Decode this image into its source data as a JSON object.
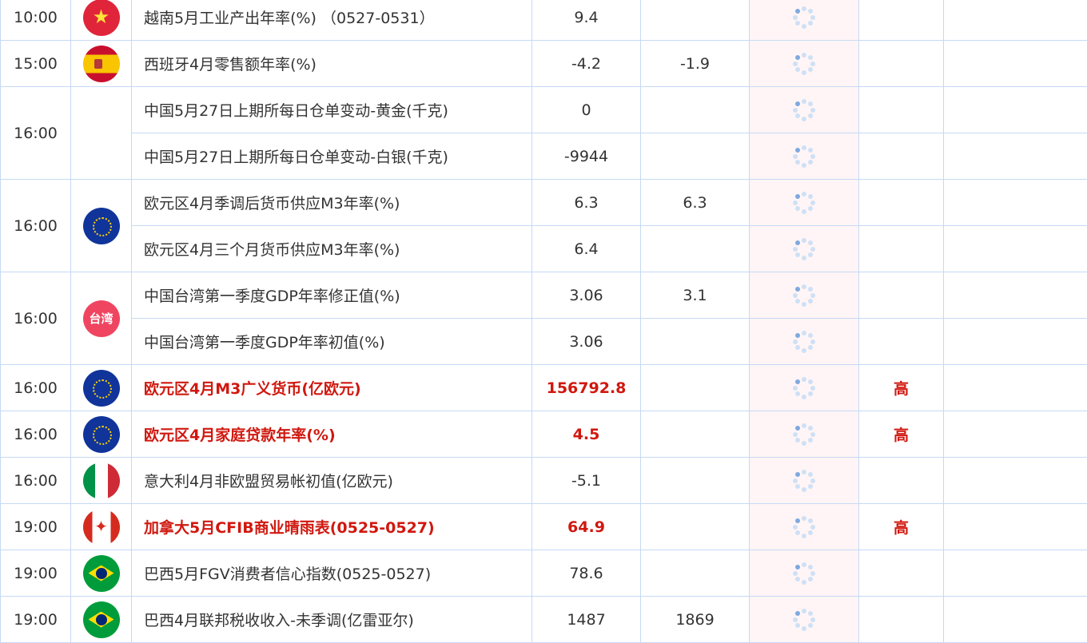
{
  "rows": [
    {
      "time": "10:00",
      "flag": "vietnam",
      "event": "越南5月工业产出年率(%)  （0527-0531）",
      "prev": "9.4",
      "forecast": "",
      "importance": ""
    },
    {
      "time": "15:00",
      "flag": "spain",
      "event": "西班牙4月零售额年率(%)",
      "prev": "-4.2",
      "forecast": "-1.9",
      "importance": ""
    },
    {
      "time": "16:00",
      "flag": "",
      "span": 2,
      "event": "中国5月27日上期所每日仓单变动-黄金(千克)",
      "prev": "0",
      "forecast": "",
      "importance": ""
    },
    {
      "event": "中国5月27日上期所每日仓单变动-白银(千克)",
      "prev": "-9944",
      "forecast": "",
      "importance": ""
    },
    {
      "time": "16:00",
      "flag": "eu",
      "span": 2,
      "event": "欧元区4月季调后货币供应M3年率(%)",
      "prev": "6.3",
      "forecast": "6.3",
      "importance": ""
    },
    {
      "event": "欧元区4月三个月货币供应M3年率(%)",
      "prev": "6.4",
      "forecast": "",
      "importance": ""
    },
    {
      "time": "16:00",
      "flag": "taiwan",
      "flag_text": "台湾",
      "span": 2,
      "event": "中国台湾第一季度GDP年率修正值(%)",
      "prev": "3.06",
      "forecast": "3.1",
      "importance": ""
    },
    {
      "event": "中国台湾第一季度GDP年率初值(%)",
      "prev": "3.06",
      "forecast": "",
      "importance": ""
    },
    {
      "time": "16:00",
      "flag": "eu",
      "event": "欧元区4月M3广义货币(亿欧元)",
      "prev": "156792.8",
      "forecast": "",
      "importance": "高",
      "high": true
    },
    {
      "time": "16:00",
      "flag": "eu",
      "event": "欧元区4月家庭贷款年率(%)",
      "prev": "4.5",
      "forecast": "",
      "importance": "高",
      "high": true
    },
    {
      "time": "16:00",
      "flag": "italy",
      "event": "意大利4月非欧盟贸易帐初值(亿欧元)",
      "prev": "-5.1",
      "forecast": "",
      "importance": ""
    },
    {
      "time": "19:00",
      "flag": "canada",
      "event": "加拿大5月CFIB商业晴雨表(0525-0527)",
      "prev": "64.9",
      "forecast": "",
      "importance": "高",
      "high": true
    },
    {
      "time": "19:00",
      "flag": "brazil",
      "event": "巴西5月FGV消费者信心指数(0525-0527)",
      "prev": "78.6",
      "forecast": "",
      "importance": ""
    },
    {
      "time": "19:00",
      "flag": "brazil",
      "event": "巴西4月联邦税收收入-未季调(亿雷亚尔)",
      "prev": "1487",
      "forecast": "1869",
      "importance": ""
    }
  ],
  "colors": {
    "border": "#c6d9f4",
    "high": "#d0180f",
    "actual_bg": "#fff5f6"
  }
}
